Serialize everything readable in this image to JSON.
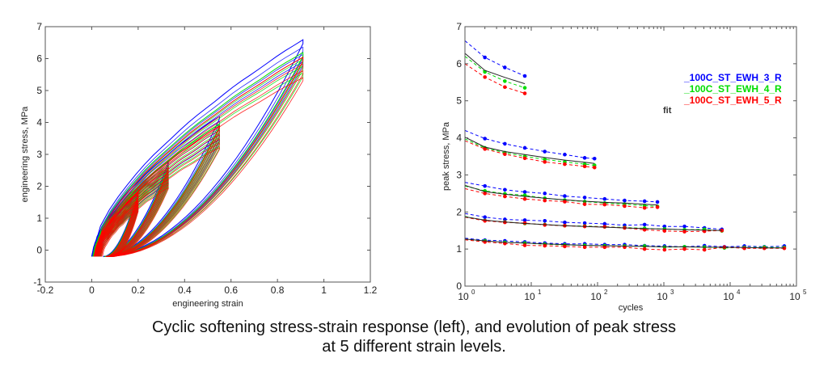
{
  "caption": {
    "line1": "Cyclic softening stress-strain response (left), and evolution of peak stress",
    "line2": "at 5 different strain levels."
  },
  "chart_data": [
    {
      "type": "line",
      "title": "",
      "xlabel": "engineering strain",
      "ylabel": "engineering stress, MPa",
      "xlim": [
        -0.2,
        1.2
      ],
      "ylim": [
        -1,
        7
      ],
      "xticks": [
        -0.2,
        0,
        0.2,
        0.4,
        0.6,
        0.8,
        1,
        1.2
      ],
      "xtick_labels": [
        "-0.2",
        "0",
        "0.2",
        "0.4",
        "0.6",
        "0.8",
        "1",
        "1.2"
      ],
      "yticks": [
        -1,
        0,
        1,
        2,
        3,
        4,
        5,
        6,
        7
      ],
      "ytick_labels": [
        "-1",
        "0",
        "1",
        "2",
        "3",
        "4",
        "5",
        "6",
        "7"
      ],
      "grid": false,
      "description": "Hysteresis loops at 5 strain levels for three specimens",
      "series": [
        {
          "name": "100C_ST_EWH_3_R",
          "color": "#0000ff",
          "loop_peaks": [
            {
              "strain": 0.2,
              "stress": 1.9
            },
            {
              "strain": 0.33,
              "stress": 2.8
            },
            {
              "strain": 0.55,
              "stress": 4.2
            },
            {
              "strain": 0.91,
              "stress": 6.6
            }
          ]
        },
        {
          "name": "100C_ST_EWH_4_R",
          "color": "#00e000",
          "loop_peaks": [
            {
              "strain": 0.2,
              "stress": 1.85
            },
            {
              "strain": 0.33,
              "stress": 2.65
            },
            {
              "strain": 0.55,
              "stress": 3.95
            },
            {
              "strain": 0.91,
              "stress": 6.2
            }
          ]
        },
        {
          "name": "100C_ST_EWH_5_R",
          "color": "#ff0000",
          "loop_peaks": [
            {
              "strain": 0.2,
              "stress": 1.8
            },
            {
              "strain": 0.33,
              "stress": 2.6
            },
            {
              "strain": 0.55,
              "stress": 3.9
            },
            {
              "strain": 0.91,
              "stress": 6.05
            }
          ]
        }
      ]
    },
    {
      "type": "line",
      "title": "",
      "xlabel": "cycles",
      "ylabel": "peak stress, MPa",
      "xscale": "log",
      "xlim": [
        1,
        100000
      ],
      "ylim": [
        0,
        7
      ],
      "xtick_labels": [
        {
          "base": "10",
          "exp": "0"
        },
        {
          "base": "10",
          "exp": "1"
        },
        {
          "base": "10",
          "exp": "2"
        },
        {
          "base": "10",
          "exp": "3"
        },
        {
          "base": "10",
          "exp": "4"
        },
        {
          "base": "10",
          "exp": "5"
        }
      ],
      "yticks": [
        0,
        1,
        2,
        3,
        4,
        5,
        6,
        7
      ],
      "ytick_labels": [
        "0",
        "1",
        "2",
        "3",
        "4",
        "5",
        "6",
        "7"
      ],
      "grid": false,
      "legend": {
        "placement": "top-right",
        "entries": [
          {
            "label": "_100C_ST_EWH_3_R",
            "color": "#0000ff"
          },
          {
            "label": "_100C_ST_EWH_4_R",
            "color": "#00dd00"
          },
          {
            "label": "_100C_ST_EWH_5_R",
            "color": "#ff0000"
          }
        ],
        "fit_label": "fit"
      },
      "groups": [
        {
          "x": [
            1,
            2,
            4,
            8
          ],
          "series": [
            {
              "name": "100C_ST_EWH_3_R",
              "values": [
                6.62,
                6.17,
                5.9,
                5.67
              ]
            },
            {
              "name": "100C_ST_EWH_4_R",
              "values": [
                6.2,
                5.78,
                5.53,
                5.35
              ]
            },
            {
              "name": "100C_ST_EWH_5_R",
              "values": [
                6.0,
                5.64,
                5.37,
                5.2
              ]
            },
            {
              "name": "fit",
              "values": [
                6.28,
                5.82,
                5.63,
                5.46
              ]
            }
          ]
        },
        {
          "x": [
            1,
            2,
            4,
            8,
            16,
            32,
            64,
            90
          ],
          "series": [
            {
              "name": "100C_ST_EWH_3_R",
              "values": [
                4.2,
                3.98,
                3.84,
                3.73,
                3.63,
                3.55,
                3.46,
                3.44
              ]
            },
            {
              "name": "100C_ST_EWH_4_R",
              "values": [
                3.97,
                3.73,
                3.6,
                3.5,
                3.42,
                3.35,
                3.29,
                3.26
              ]
            },
            {
              "name": "100C_ST_EWH_5_R",
              "values": [
                3.92,
                3.7,
                3.56,
                3.45,
                3.35,
                3.29,
                3.23,
                3.2
              ]
            },
            {
              "name": "fit",
              "values": [
                4.02,
                3.75,
                3.63,
                3.55,
                3.47,
                3.4,
                3.34,
                3.31
              ]
            }
          ]
        },
        {
          "x": [
            1,
            2,
            4,
            8,
            16,
            32,
            64,
            128,
            256,
            512,
            800
          ],
          "series": [
            {
              "name": "100C_ST_EWH_3_R",
              "values": [
                2.8,
                2.7,
                2.6,
                2.54,
                2.5,
                2.43,
                2.39,
                2.35,
                2.31,
                2.29,
                2.27
              ]
            },
            {
              "name": "100C_ST_EWH_4_R",
              "values": [
                2.7,
                2.57,
                2.49,
                2.45,
                2.37,
                2.32,
                2.28,
                2.24,
                2.21,
                2.17,
                2.15
              ]
            },
            {
              "name": "100C_ST_EWH_5_R",
              "values": [
                2.63,
                2.5,
                2.42,
                2.35,
                2.31,
                2.28,
                2.21,
                2.2,
                2.16,
                2.11,
                2.13
              ]
            },
            {
              "name": "fit",
              "values": [
                2.72,
                2.55,
                2.48,
                2.42,
                2.37,
                2.33,
                2.29,
                2.26,
                2.24,
                2.21,
                2.19
              ]
            }
          ]
        },
        {
          "x": [
            1,
            2,
            4,
            8,
            16,
            32,
            64,
            128,
            256,
            512,
            1024,
            2048,
            4096,
            7500
          ],
          "series": [
            {
              "name": "100C_ST_EWH_3_R",
              "values": [
                1.96,
                1.86,
                1.8,
                1.78,
                1.76,
                1.72,
                1.7,
                1.68,
                1.64,
                1.66,
                1.61,
                1.61,
                1.57,
                1.53
              ]
            },
            {
              "name": "100C_ST_EWH_4_R",
              "values": [
                1.88,
                1.77,
                1.73,
                1.69,
                1.66,
                1.63,
                1.62,
                1.6,
                1.58,
                1.56,
                1.54,
                1.52,
                1.53,
                1.49
              ]
            },
            {
              "name": "100C_ST_EWH_5_R",
              "values": [
                1.86,
                1.76,
                1.72,
                1.7,
                1.65,
                1.63,
                1.61,
                1.6,
                1.57,
                1.52,
                1.49,
                1.47,
                1.48,
                1.5
              ]
            },
            {
              "name": "fit",
              "values": [
                1.87,
                1.78,
                1.73,
                1.69,
                1.66,
                1.63,
                1.61,
                1.59,
                1.57,
                1.55,
                1.54,
                1.52,
                1.51,
                1.5
              ]
            }
          ]
        },
        {
          "x": [
            1,
            2,
            4,
            8,
            16,
            32,
            64,
            128,
            256,
            512,
            1024,
            2048,
            4096,
            8192,
            16384,
            32768,
            65536
          ],
          "series": [
            {
              "name": "100C_ST_EWH_3_R",
              "values": [
                1.29,
                1.24,
                1.22,
                1.19,
                1.16,
                1.14,
                1.14,
                1.12,
                1.12,
                1.09,
                1.08,
                1.06,
                1.09,
                1.06,
                1.08,
                1.06,
                1.08
              ]
            },
            {
              "name": "100C_ST_EWH_4_R",
              "values": [
                1.27,
                1.22,
                1.18,
                1.16,
                1.13,
                1.11,
                1.1,
                1.09,
                1.08,
                1.08,
                1.05,
                1.06,
                1.05,
                1.03,
                1.04,
                1.05,
                1.04
              ]
            },
            {
              "name": "100C_ST_EWH_5_R",
              "values": [
                1.25,
                1.19,
                1.15,
                1.1,
                1.09,
                1.07,
                1.05,
                1.05,
                1.05,
                1.0,
                0.98,
                1.0,
                0.98,
                1.05,
                1.02,
                1.02,
                1.02
              ]
            },
            {
              "name": "fit",
              "values": [
                1.27,
                1.22,
                1.18,
                1.16,
                1.14,
                1.12,
                1.1,
                1.09,
                1.08,
                1.07,
                1.06,
                1.06,
                1.05,
                1.05,
                1.04,
                1.03,
                1.03
              ]
            }
          ]
        }
      ]
    }
  ]
}
